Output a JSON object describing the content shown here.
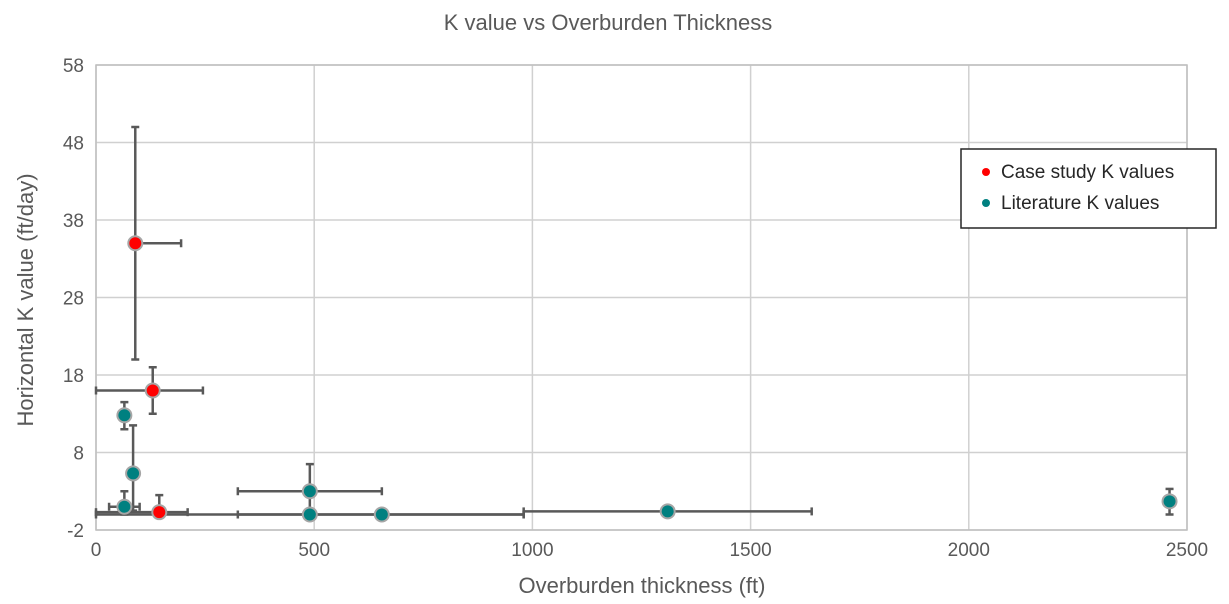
{
  "chart_data": {
    "type": "scatter",
    "title": "K value vs Overburden Thickness",
    "xlabel": "Overburden thickness (ft)",
    "ylabel": "Horizontal K value (ft/day)",
    "xlim": [
      0,
      2500
    ],
    "ylim": [
      -2,
      58
    ],
    "xticks": [
      0,
      500,
      1000,
      1500,
      2000,
      2500
    ],
    "yticks": [
      -2,
      8,
      18,
      28,
      38,
      48,
      58
    ],
    "xtick_labels": [
      "0",
      "500",
      "1000",
      "1500",
      "2000",
      "2500"
    ],
    "ytick_labels": [
      "-2",
      "8",
      "18",
      "28",
      "38",
      "48",
      "58"
    ],
    "grid": true,
    "legend_position": "top-right",
    "series": [
      {
        "name": "Case study K values",
        "color": "#ff0000",
        "points": [
          {
            "x": 90,
            "y": 35,
            "xerr": [
              90,
              195
            ],
            "yerr": [
              20,
              50
            ]
          },
          {
            "x": 130,
            "y": 16,
            "xerr": [
              0,
              245
            ],
            "yerr": [
              13,
              19
            ]
          },
          {
            "x": 145,
            "y": 0.3,
            "xerr": [
              0,
              210
            ],
            "yerr": [
              0,
              2.5
            ]
          }
        ]
      },
      {
        "name": "Literature K values",
        "color": "#008080",
        "points": [
          {
            "x": 65,
            "y": 12.8,
            "xerr": null,
            "yerr": [
              11,
              14.5
            ]
          },
          {
            "x": 85,
            "y": 5.3,
            "xerr": null,
            "yerr": [
              0.5,
              11.5
            ]
          },
          {
            "x": 65,
            "y": 1,
            "xerr": [
              30,
              100
            ],
            "yerr": [
              0,
              3
            ]
          },
          {
            "x": 490,
            "y": 3,
            "xerr": [
              325,
              655
            ],
            "yerr": [
              0,
              6.5
            ]
          },
          {
            "x": 490,
            "y": 0,
            "xerr": [
              0,
              980
            ],
            "yerr": null
          },
          {
            "x": 655,
            "y": 0,
            "xerr": [
              325,
              980
            ],
            "yerr": null
          },
          {
            "x": 1310,
            "y": 0.4,
            "xerr": [
              980,
              1640
            ],
            "yerr": null
          },
          {
            "x": 2460,
            "y": 1.7,
            "xerr": null,
            "yerr": [
              0,
              3.3
            ]
          }
        ]
      }
    ]
  }
}
